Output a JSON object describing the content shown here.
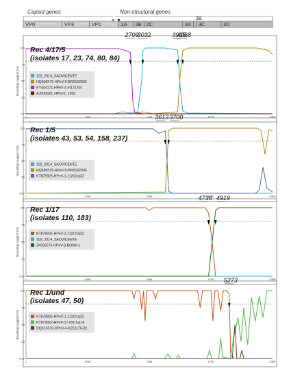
{
  "genome": {
    "capsid_label": "Capsid genes",
    "nonstructural_label": "Non-structural genes",
    "regions": [
      {
        "name": "VP0",
        "start": 1,
        "end": 1000
      },
      {
        "name": "VP3",
        "start": 1000,
        "end": 1700
      },
      {
        "name": "VP1",
        "start": 1700,
        "end": 2450
      },
      {
        "name": "2A",
        "start": 2450,
        "end": 2820
      },
      {
        "name": "2B",
        "start": 2820,
        "end": 3100
      },
      {
        "name": "2C",
        "start": 3100,
        "end": 4090
      },
      {
        "name": "3A",
        "start": 4090,
        "end": 4370
      },
      {
        "name": "3B",
        "start": 4370,
        "end": 4440
      },
      {
        "name": "3C",
        "start": 4440,
        "end": 5080
      },
      {
        "name": "3D",
        "start": 5080,
        "end": 6395
      }
    ],
    "marker_a": "a"
  },
  "x_ticks": [
    "1",
    "1595",
    "3195",
    "4795",
    "6395"
  ],
  "ylabel": "Bootstrap support (%)",
  "chart_data": [
    {
      "type": "line",
      "title": "Rec 4/17/5",
      "subtitle": "(isolates  17, 23, 74, 80, 84)",
      "breakpoints": [
        {
          "label": "2709",
          "x": 2709
        },
        {
          "label": "3032",
          "x": 3032
        },
        {
          "label": "3935",
          "x": 3935
        },
        {
          "label": "4068",
          "x": 4068
        }
      ],
      "y_ticks": [
        "100",
        "75",
        "50",
        "25",
        "0.0"
      ],
      "ylim": [
        0,
        100
      ],
      "threshold": 80,
      "series": [
        {
          "name": "102_2014_SAOVICENTE",
          "color": "#27b4c4",
          "points": [
            [
              1,
              0
            ],
            [
              2300,
              0
            ],
            [
              2500,
              3
            ],
            [
              2709,
              1
            ],
            [
              2900,
              3
            ],
            [
              3000,
              50
            ],
            [
              3032,
              96
            ],
            [
              3100,
              100
            ],
            [
              3600,
              100
            ],
            [
              3935,
              97
            ],
            [
              4000,
              40
            ],
            [
              4068,
              4
            ],
            [
              4200,
              1
            ],
            [
              6395,
              0
            ]
          ]
        },
        {
          "name": "HQ696575-HPeV-5-BR/53/2006",
          "color": "#b08d12",
          "points": [
            [
              1,
              0
            ],
            [
              2709,
              0
            ],
            [
              2800,
              0
            ],
            [
              3032,
              3
            ],
            [
              3300,
              0
            ],
            [
              3935,
              3
            ],
            [
              4000,
              60
            ],
            [
              4068,
              96
            ],
            [
              4200,
              100
            ],
            [
              6000,
              100
            ],
            [
              6150,
              98
            ],
            [
              6300,
              96
            ],
            [
              6395,
              90
            ]
          ]
        },
        {
          "name": "KY404171-HPeV-4-FI121301",
          "color": "#b020c8",
          "points": [
            [
              1,
              99
            ],
            [
              2400,
              99
            ],
            [
              2600,
              96
            ],
            [
              2709,
              93
            ],
            [
              2770,
              20
            ],
            [
              2820,
              2
            ],
            [
              3032,
              0
            ],
            [
              6395,
              0
            ]
          ]
        },
        {
          "name": "AJ005695_HPeV2_1956",
          "color": "#5a1a10",
          "points": [
            [
              1,
              0
            ],
            [
              6395,
              0
            ]
          ]
        }
      ]
    },
    {
      "type": "line",
      "title": "Rec 1/5",
      "subtitle": "(isolates 43, 53, 54, 158, 237)",
      "breakpoints": [
        {
          "label": "3613",
          "x": 3613
        },
        {
          "label": "3700",
          "x": 3700
        }
      ],
      "y_ticks": [
        "100",
        "75",
        "50",
        "25",
        "0.00"
      ],
      "ylim": [
        0,
        100
      ],
      "threshold": 80,
      "series": [
        {
          "name": "102_2014_SAOVICENTE",
          "color": "#27b4c4",
          "points": [
            [
              1,
              0
            ],
            [
              6395,
              0
            ]
          ]
        },
        {
          "name": "HQ696575-HPeV-5-BR/53/2006",
          "color": "#b08d12",
          "points": [
            [
              1,
              0
            ],
            [
              3613,
              2
            ],
            [
              3660,
              50
            ],
            [
              3700,
              96
            ],
            [
              3800,
              100
            ],
            [
              6000,
              100
            ],
            [
              6100,
              96
            ],
            [
              6200,
              60
            ],
            [
              6300,
              98
            ],
            [
              6395,
              96
            ]
          ]
        },
        {
          "name": "KT879925-HPeV-1-112Chzj32",
          "color": "#5066a8",
          "points": [
            [
              1,
              99
            ],
            [
              3300,
              99
            ],
            [
              3450,
              92
            ],
            [
              3613,
              96
            ],
            [
              3660,
              50
            ],
            [
              3700,
              3
            ],
            [
              3800,
              0
            ],
            [
              5950,
              0
            ],
            [
              6050,
              5
            ],
            [
              6150,
              40
            ],
            [
              6250,
              8
            ],
            [
              6395,
              2
            ]
          ]
        }
      ]
    },
    {
      "type": "line",
      "title": "Rec 1/17",
      "subtitle": "(isolates 110, 183)",
      "breakpoints": [
        {
          "label": "4736",
          "x": 4736
        },
        {
          "label": "4919",
          "x": 4919
        }
      ],
      "y_ticks": [
        "100",
        "75",
        "50",
        "25",
        "0.00"
      ],
      "ylim": [
        0,
        100
      ],
      "threshold": 80,
      "series": [
        {
          "name": "KT879925-HPeV-1-112Chzj32",
          "color": "#c0561f",
          "points": [
            [
              1,
              100
            ],
            [
              3100,
              100
            ],
            [
              3200,
              96
            ],
            [
              3300,
              100
            ],
            [
              4650,
              100
            ],
            [
              4736,
              92
            ],
            [
              4830,
              50
            ],
            [
              4919,
              0
            ],
            [
              6395,
              0
            ]
          ]
        },
        {
          "name": "102_2014_SAOVICENTE",
          "color": "#27b4c4",
          "points": [
            [
              1,
              0
            ],
            [
              6395,
              0
            ]
          ]
        },
        {
          "name": "JX682576-HPeV-3-BONN-1",
          "color": "#2a5e2a",
          "points": [
            [
              1,
              0
            ],
            [
              4736,
              0
            ],
            [
              4830,
              50
            ],
            [
              4919,
              96
            ],
            [
              5000,
              100
            ],
            [
              6395,
              100
            ]
          ]
        }
      ]
    },
    {
      "type": "line",
      "title": "Rec 1/und",
      "subtitle": "(isolates 47, 50)",
      "breakpoints": [
        {
          "label": "5273",
          "x": 5273
        }
      ],
      "y_ticks": [
        "100",
        "75",
        "50",
        "25",
        "0.00"
      ],
      "ylim": [
        0,
        100
      ],
      "threshold": 80,
      "series": [
        {
          "name": "KT879925-HPeV-1-112Chzj32",
          "color": "#c0561f",
          "points": [
            [
              1,
              100
            ],
            [
              2750,
              100
            ],
            [
              2800,
              88
            ],
            [
              2850,
              100
            ],
            [
              2950,
              100
            ],
            [
              3000,
              72
            ],
            [
              3050,
              100
            ],
            [
              3090,
              55
            ],
            [
              3130,
              100
            ],
            [
              3300,
              100
            ],
            [
              3360,
              88
            ],
            [
              3420,
              100
            ],
            [
              4450,
              100
            ],
            [
              4520,
              75
            ],
            [
              4580,
              100
            ],
            [
              4700,
              100
            ],
            [
              4800,
              100
            ],
            [
              4850,
              55
            ],
            [
              4900,
              100
            ],
            [
              4980,
              100
            ],
            [
              5050,
              70
            ],
            [
              5120,
              100
            ],
            [
              5200,
              100
            ],
            [
              5273,
              95
            ],
            [
              5290,
              50
            ],
            [
              5310,
              5
            ],
            [
              5400,
              0
            ],
            [
              6395,
              0
            ]
          ]
        },
        {
          "name": "KT879922-HPeV-17-89Chzj14",
          "color": "#52b84a",
          "points": [
            [
              1,
              0
            ],
            [
              2750,
              0
            ],
            [
              2800,
              8
            ],
            [
              2850,
              0
            ],
            [
              3600,
              0
            ],
            [
              3680,
              7
            ],
            [
              3750,
              0
            ],
            [
              3900,
              0
            ],
            [
              3950,
              5
            ],
            [
              4000,
              0
            ],
            [
              4700,
              0
            ],
            [
              4760,
              12
            ],
            [
              4820,
              0
            ],
            [
              5000,
              0
            ],
            [
              5050,
              30
            ],
            [
              5100,
              2
            ],
            [
              5300,
              0
            ],
            [
              5400,
              35
            ],
            [
              5500,
              60
            ],
            [
              5580,
              25
            ],
            [
              5650,
              75
            ],
            [
              5750,
              20
            ],
            [
              5850,
              90
            ],
            [
              5950,
              55
            ],
            [
              6050,
              92
            ],
            [
              6150,
              60
            ],
            [
              6250,
              100
            ],
            [
              6395,
              100
            ]
          ]
        },
        {
          "name": "DQ315670-HPeV-4-K251176-02",
          "color": "#5a3838",
          "points": [
            [
              1,
              0
            ],
            [
              5350,
              0
            ],
            [
              5420,
              50
            ],
            [
              5470,
              0
            ],
            [
              5550,
              0
            ],
            [
              5600,
              12
            ],
            [
              5650,
              0
            ],
            [
              6395,
              0
            ]
          ]
        }
      ]
    }
  ]
}
